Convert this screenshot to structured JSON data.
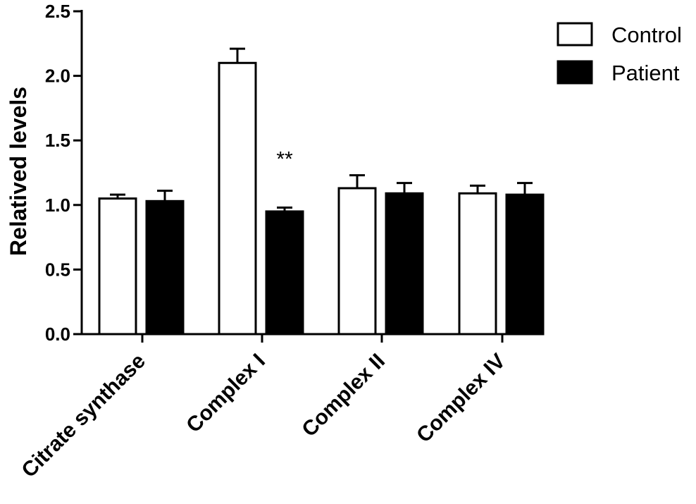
{
  "chart_data": {
    "type": "bar",
    "title": "",
    "xlabel": "",
    "ylabel": "Relatived levels",
    "ylim": [
      0,
      2.5
    ],
    "yticks": [
      0.0,
      0.5,
      1.0,
      1.5,
      2.0,
      2.5
    ],
    "ytick_labels": [
      "0.0",
      "0.5",
      "1.0",
      "1.5",
      "2.0",
      "2.5"
    ],
    "categories": [
      "Citrate synthase",
      "Complex I",
      "Complex II",
      "Complex IV"
    ],
    "series": [
      {
        "name": "Control",
        "fill": "#ffffff",
        "values": [
          1.05,
          2.1,
          1.13,
          1.09
        ],
        "errors": [
          0.03,
          0.11,
          0.1,
          0.06
        ]
      },
      {
        "name": "Patient",
        "fill": "#000000",
        "values": [
          1.03,
          0.95,
          1.09,
          1.08
        ],
        "errors": [
          0.08,
          0.03,
          0.08,
          0.09
        ]
      }
    ],
    "annotations": [
      {
        "text": "**",
        "category": "Complex I",
        "series": "Patient",
        "y": 1.4
      }
    ],
    "legend_position": "top-right",
    "grid": false
  }
}
